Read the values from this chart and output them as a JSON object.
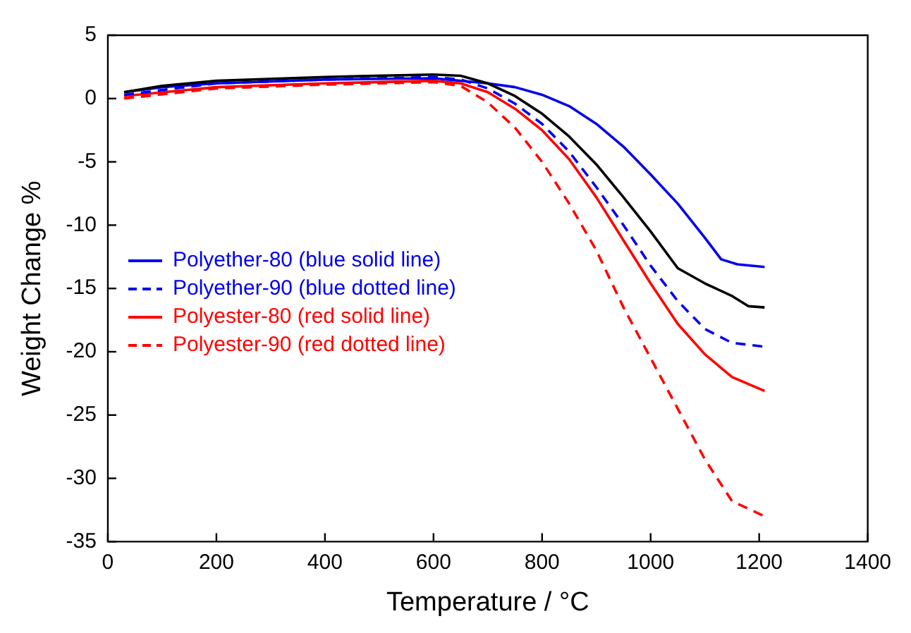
{
  "chart_data": {
    "type": "line",
    "xlabel": "Temperature / °C",
    "ylabel": "Weight Change %",
    "xlim": [
      0,
      1400
    ],
    "xticks": [
      0,
      200,
      400,
      600,
      800,
      1000,
      1200,
      1400
    ],
    "ylim": [
      -35,
      5
    ],
    "yticks": [
      -35,
      -30,
      -25,
      -20,
      -15,
      -10,
      -5,
      0,
      5
    ],
    "grid": false,
    "legend": "left",
    "marker": "none",
    "series": [
      {
        "color": "#000000",
        "line_style": "solid",
        "x": [
          30,
          100,
          200,
          400,
          600,
          650,
          700,
          750,
          800,
          850,
          900,
          950,
          1000,
          1050,
          1100,
          1150,
          1180,
          1210
        ],
        "values": [
          0.5,
          1.0,
          1.4,
          1.7,
          1.9,
          1.8,
          1.2,
          0.2,
          -1.2,
          -3,
          -5.2,
          -7.8,
          -10.5,
          -13.4,
          -14.6,
          -15.6,
          -16.4,
          -16.5
        ]
      },
      {
        "name": "Polyether-80 (blue solid line)",
        "color": "#0000ee",
        "line_style": "solid",
        "x": [
          30,
          100,
          200,
          400,
          600,
          700,
          750,
          800,
          850,
          900,
          950,
          1000,
          1050,
          1100,
          1130,
          1160,
          1210
        ],
        "values": [
          0.5,
          0.9,
          1.2,
          1.5,
          1.6,
          1.2,
          0.9,
          0.3,
          -0.6,
          -2,
          -3.8,
          -6,
          -8.3,
          -11,
          -12.7,
          -13.1,
          -13.3
        ]
      },
      {
        "name": "Polyether-90 (blue dotted line)",
        "color": "#0000ee",
        "line_style": "dashed",
        "x": [
          30,
          200,
          400,
          600,
          650,
          700,
          750,
          800,
          850,
          900,
          950,
          1000,
          1050,
          1100,
          1150,
          1210
        ],
        "values": [
          0.3,
          1.2,
          1.5,
          1.7,
          1.5,
          0.8,
          -0.4,
          -2,
          -4.2,
          -7,
          -10,
          -13.2,
          -16,
          -18.2,
          -19.3,
          -19.6
        ]
      },
      {
        "name": "Polyester-80 (red solid line)",
        "color": "#ff0000",
        "line_style": "solid",
        "x": [
          30,
          200,
          400,
          600,
          650,
          700,
          750,
          800,
          850,
          900,
          950,
          1000,
          1050,
          1100,
          1150,
          1210
        ],
        "values": [
          0.2,
          0.9,
          1.2,
          1.4,
          1.2,
          0.5,
          -0.8,
          -2.5,
          -4.8,
          -7.8,
          -11.2,
          -14.6,
          -17.8,
          -20.2,
          -22,
          -23.1
        ]
      },
      {
        "name": "Polyester-90 (red dotted line)",
        "color": "#ff0000",
        "line_style": "dashed",
        "x": [
          30,
          200,
          400,
          600,
          650,
          700,
          750,
          800,
          850,
          900,
          950,
          1000,
          1050,
          1100,
          1150,
          1210
        ],
        "values": [
          0,
          0.8,
          1.1,
          1.3,
          1.0,
          -0.3,
          -2.3,
          -5,
          -8.3,
          -12,
          -16.5,
          -20.5,
          -24.5,
          -28.5,
          -31.8,
          -33
        ]
      }
    ]
  }
}
